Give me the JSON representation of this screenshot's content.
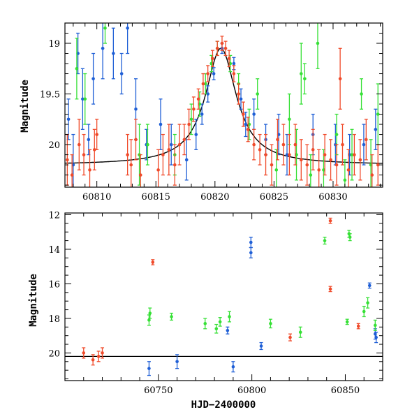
{
  "colors": {
    "blue": "#1f5fd6",
    "green": "#36e036",
    "red": "#f04a2a",
    "model": "#000000"
  },
  "chart_data": [
    {
      "type": "scatter",
      "panel": "top",
      "xlabel": "",
      "ylabel": "Magnitude",
      "xlim": [
        60807.3,
        60834.2
      ],
      "ylim": [
        20.42,
        18.8
      ],
      "y_inverted": true,
      "x_ticks": [
        60810,
        60815,
        60820,
        60825,
        60830
      ],
      "y_ticks": [
        19,
        19.5,
        20
      ],
      "y_tick_labels": [
        "19",
        "19.5",
        "20"
      ],
      "error_bars": true,
      "series": [
        {
          "color": "blue",
          "points": [
            [
              60807.6,
              19.75,
              0.2
            ],
            [
              60808.0,
              20.2,
              0.3
            ],
            [
              60808.4,
              19.1,
              0.2
            ],
            [
              60808.8,
              19.55,
              0.3
            ],
            [
              60809.3,
              19.95,
              0.15
            ],
            [
              60809.7,
              19.35,
              0.25
            ],
            [
              60810.5,
              19.05,
              0.3
            ],
            [
              60811.4,
              19.1,
              0.25
            ],
            [
              60812.1,
              19.3,
              0.2
            ],
            [
              60812.6,
              18.85,
              0.25
            ],
            [
              60813.3,
              19.65,
              0.3
            ],
            [
              60814.2,
              20.0,
              0.15
            ],
            [
              60815.4,
              19.8,
              0.25
            ],
            [
              60816.3,
              20.0,
              0.2
            ],
            [
              60817.6,
              20.15,
              0.2
            ],
            [
              60818.4,
              19.9,
              0.15
            ],
            [
              60818.9,
              19.7,
              0.1
            ],
            [
              60819.4,
              19.5,
              0.08
            ],
            [
              60819.9,
              19.3,
              0.06
            ],
            [
              60820.6,
              19.05,
              0.05
            ],
            [
              60821.6,
              19.2,
              0.06
            ],
            [
              60822.2,
              19.55,
              0.1
            ],
            [
              60822.6,
              19.8,
              0.12
            ],
            [
              60823.3,
              19.7,
              0.15
            ],
            [
              60824.3,
              19.95,
              0.15
            ],
            [
              60825.4,
              19.9,
              0.2
            ],
            [
              60826.1,
              20.1,
              0.2
            ],
            [
              60828.3,
              19.9,
              0.2
            ],
            [
              60830.2,
              20.0,
              0.2
            ],
            [
              60831.4,
              20.1,
              0.2
            ],
            [
              60832.6,
              20.0,
              0.2
            ],
            [
              60833.6,
              19.85,
              0.2
            ]
          ]
        },
        {
          "color": "green",
          "points": [
            [
              60808.3,
              19.25,
              0.3
            ],
            [
              60809.0,
              19.55,
              0.25
            ],
            [
              60810.7,
              18.85,
              0.15
            ],
            [
              60813.6,
              20.1,
              0.3
            ],
            [
              60814.3,
              20.0,
              0.2
            ],
            [
              60816.6,
              20.1,
              0.2
            ],
            [
              60818.0,
              19.75,
              0.15
            ],
            [
              60818.7,
              19.6,
              0.12
            ],
            [
              60819.2,
              19.4,
              0.1
            ],
            [
              60819.7,
              19.2,
              0.08
            ],
            [
              60820.2,
              19.05,
              0.07
            ],
            [
              60821.3,
              19.2,
              0.08
            ],
            [
              60822.0,
              19.4,
              0.1
            ],
            [
              60822.9,
              19.8,
              0.15
            ],
            [
              60823.6,
              19.5,
              0.15
            ],
            [
              60825.2,
              20.25,
              0.2
            ],
            [
              60826.3,
              19.75,
              0.25
            ],
            [
              60826.9,
              20.1,
              0.25
            ],
            [
              60827.3,
              19.3,
              0.3
            ],
            [
              60827.6,
              19.35,
              0.15
            ],
            [
              60828.1,
              20.3,
              0.2
            ],
            [
              60828.7,
              19.0,
              0.25
            ],
            [
              60829.2,
              20.25,
              0.2
            ],
            [
              60830.3,
              19.9,
              0.2
            ],
            [
              60831.0,
              20.35,
              0.2
            ],
            [
              60831.6,
              20.1,
              0.25
            ],
            [
              60832.4,
              19.5,
              0.15
            ],
            [
              60833.2,
              20.2,
              0.25
            ],
            [
              60833.8,
              19.7,
              0.3
            ]
          ]
        },
        {
          "color": "red",
          "points": [
            [
              60807.5,
              20.15,
              0.25
            ],
            [
              60807.9,
              20.3,
              0.2
            ],
            [
              60808.5,
              20.0,
              0.25
            ],
            [
              60808.9,
              20.1,
              0.2
            ],
            [
              60809.4,
              20.25,
              0.2
            ],
            [
              60809.8,
              20.05,
              0.2
            ],
            [
              60810.0,
              19.9,
              0.15
            ],
            [
              60812.6,
              20.1,
              0.2
            ],
            [
              60812.9,
              20.2,
              0.25
            ],
            [
              60813.3,
              19.95,
              0.2
            ],
            [
              60813.7,
              20.3,
              0.2
            ],
            [
              60815.2,
              20.25,
              0.2
            ],
            [
              60815.6,
              20.1,
              0.2
            ],
            [
              60816.1,
              20.05,
              0.25
            ],
            [
              60816.6,
              20.2,
              0.2
            ],
            [
              60817.0,
              20.0,
              0.2
            ],
            [
              60817.4,
              19.95,
              0.15
            ],
            [
              60817.8,
              19.8,
              0.15
            ],
            [
              60818.2,
              19.65,
              0.12
            ],
            [
              60818.6,
              19.55,
              0.1
            ],
            [
              60819.0,
              19.4,
              0.1
            ],
            [
              60819.4,
              19.3,
              0.08
            ],
            [
              60819.8,
              19.15,
              0.08
            ],
            [
              60820.2,
              19.05,
              0.07
            ],
            [
              60820.6,
              19.0,
              0.07
            ],
            [
              60820.9,
              19.05,
              0.07
            ],
            [
              60821.2,
              19.15,
              0.08
            ],
            [
              60821.6,
              19.3,
              0.08
            ],
            [
              60822.0,
              19.5,
              0.1
            ],
            [
              60822.4,
              19.7,
              0.12
            ],
            [
              60822.8,
              19.85,
              0.12
            ],
            [
              60823.3,
              20.0,
              0.15
            ],
            [
              60823.8,
              20.05,
              0.15
            ],
            [
              60824.3,
              20.1,
              0.2
            ],
            [
              60824.8,
              20.2,
              0.2
            ],
            [
              60825.3,
              19.95,
              0.2
            ],
            [
              60825.8,
              20.0,
              0.2
            ],
            [
              60826.3,
              20.1,
              0.2
            ],
            [
              60826.8,
              20.0,
              0.2
            ],
            [
              60827.3,
              20.15,
              0.2
            ],
            [
              60827.8,
              20.2,
              0.2
            ],
            [
              60828.3,
              20.05,
              0.2
            ],
            [
              60828.8,
              20.25,
              0.2
            ],
            [
              60829.3,
              20.1,
              0.2
            ],
            [
              60829.8,
              20.15,
              0.2
            ],
            [
              60830.3,
              20.2,
              0.2
            ],
            [
              60830.8,
              20.0,
              0.2
            ],
            [
              60831.3,
              20.25,
              0.2
            ],
            [
              60831.8,
              20.1,
              0.2
            ],
            [
              60832.3,
              20.15,
              0.2
            ],
            [
              60832.8,
              19.95,
              0.2
            ],
            [
              60833.3,
              20.3,
              0.2
            ],
            [
              60833.8,
              20.2,
              0.2
            ],
            [
              60830.6,
              19.35,
              0.3
            ]
          ]
        }
      ],
      "model_curve": {
        "peak_x": 60820.5,
        "peak_mag": 19.05,
        "base_mag": 20.2,
        "width": 1.6
      }
    },
    {
      "type": "scatter",
      "panel": "bottom",
      "xlabel": "HJD−2400000",
      "ylabel": "Magnitude",
      "xlim": [
        60700,
        60870
      ],
      "ylim": [
        21.6,
        11.9
      ],
      "y_inverted": true,
      "x_ticks": [
        60750,
        60800,
        60850
      ],
      "y_ticks": [
        12,
        14,
        16,
        18,
        20
      ],
      "error_bars": true,
      "baseline_mag": 20.2,
      "series": [
        {
          "color": "blue",
          "points": [
            [
              60799.5,
              13.6,
              0.3
            ],
            [
              60799.5,
              14.2,
              0.3
            ],
            [
              60863.0,
              16.1,
              0.15
            ],
            [
              60866.0,
              18.9,
              0.3
            ],
            [
              60866.5,
              19.1,
              0.3
            ],
            [
              60787.0,
              18.7,
              0.2
            ],
            [
              60745.0,
              20.9,
              0.4
            ],
            [
              60760.0,
              20.5,
              0.4
            ],
            [
              60790.0,
              20.8,
              0.3
            ],
            [
              60805.0,
              19.6,
              0.2
            ]
          ]
        },
        {
          "color": "green",
          "points": [
            [
              60839.0,
              13.5,
              0.2
            ],
            [
              60852.0,
              13.1,
              0.2
            ],
            [
              60852.5,
              13.3,
              0.2
            ],
            [
              60745.0,
              18.1,
              0.3
            ],
            [
              60745.5,
              17.7,
              0.3
            ],
            [
              60757.0,
              17.9,
              0.2
            ],
            [
              60775.0,
              18.3,
              0.3
            ],
            [
              60781.0,
              18.6,
              0.25
            ],
            [
              60783.0,
              18.2,
              0.25
            ],
            [
              60788.0,
              17.9,
              0.3
            ],
            [
              60810.0,
              18.3,
              0.25
            ],
            [
              60826.0,
              18.8,
              0.3
            ],
            [
              60851.0,
              18.2,
              0.15
            ],
            [
              60860.0,
              17.6,
              0.3
            ],
            [
              60862.0,
              17.1,
              0.3
            ],
            [
              60866.0,
              18.4,
              0.3
            ]
          ]
        },
        {
          "color": "red",
          "points": [
            [
              60747.0,
              14.75,
              0.15
            ],
            [
              60842.0,
              12.35,
              0.15
            ],
            [
              60842.0,
              16.3,
              0.15
            ],
            [
              60857.0,
              18.45,
              0.15
            ],
            [
              60710.0,
              20.0,
              0.3
            ],
            [
              60715.0,
              20.4,
              0.3
            ],
            [
              60718.0,
              20.2,
              0.3
            ],
            [
              60720.0,
              20.0,
              0.3
            ],
            [
              60820.5,
              19.1,
              0.2
            ]
          ]
        }
      ]
    }
  ]
}
